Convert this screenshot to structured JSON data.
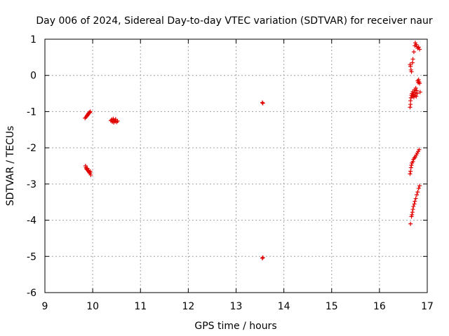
{
  "chart_data": {
    "type": "scatter",
    "title": "Day 006 of 2024, Sidereal Day-to-day VTEC variation (SDTVAR) for receiver naur",
    "xlabel": "GPS time / hours",
    "ylabel": "SDTVAR / TECUs",
    "xlim": [
      9,
      17
    ],
    "ylim": [
      -6,
      1
    ],
    "x_ticks": [
      9,
      10,
      11,
      12,
      13,
      14,
      15,
      16,
      17
    ],
    "y_ticks": [
      1,
      0,
      -1,
      -2,
      -3,
      -4,
      -5,
      -6
    ],
    "grid": true,
    "marker": "+",
    "color": "#e00000",
    "series": [
      {
        "name": "SDTVAR",
        "points": [
          [
            9.84,
            -1.18
          ],
          [
            9.86,
            -1.15
          ],
          [
            9.88,
            -1.12
          ],
          [
            9.89,
            -1.1
          ],
          [
            9.9,
            -1.08
          ],
          [
            9.91,
            -1.06
          ],
          [
            9.92,
            -1.04
          ],
          [
            9.93,
            -1.03
          ],
          [
            9.94,
            -1.02
          ],
          [
            9.95,
            -1.0
          ],
          [
            9.85,
            -2.5
          ],
          [
            9.86,
            -2.55
          ],
          [
            9.87,
            -2.58
          ],
          [
            9.88,
            -2.6
          ],
          [
            9.89,
            -2.57
          ],
          [
            9.9,
            -2.62
          ],
          [
            9.91,
            -2.64
          ],
          [
            9.92,
            -2.66
          ],
          [
            9.93,
            -2.68
          ],
          [
            9.94,
            -2.7
          ],
          [
            9.95,
            -2.65
          ],
          [
            9.96,
            -2.75
          ],
          [
            10.38,
            -1.25
          ],
          [
            10.4,
            -1.22
          ],
          [
            10.41,
            -1.28
          ],
          [
            10.43,
            -1.2
          ],
          [
            10.44,
            -1.3
          ],
          [
            10.45,
            -1.24
          ],
          [
            10.47,
            -1.27
          ],
          [
            10.48,
            -1.21
          ],
          [
            10.5,
            -1.29
          ],
          [
            10.52,
            -1.26
          ],
          [
            13.55,
            -0.75
          ],
          [
            13.56,
            -0.77
          ],
          [
            13.55,
            -5.05
          ],
          [
            13.56,
            -5.03
          ],
          [
            16.64,
            0.3
          ],
          [
            16.65,
            0.25
          ],
          [
            16.66,
            0.15
          ],
          [
            16.67,
            0.1
          ],
          [
            16.69,
            0.35
          ],
          [
            16.7,
            0.45
          ],
          [
            16.72,
            0.65
          ],
          [
            16.74,
            0.82
          ],
          [
            16.75,
            0.9
          ],
          [
            16.77,
            0.85
          ],
          [
            16.78,
            0.8
          ],
          [
            16.8,
            0.75
          ],
          [
            16.82,
            0.78
          ],
          [
            16.84,
            0.72
          ],
          [
            16.64,
            -0.88
          ],
          [
            16.65,
            -0.8
          ],
          [
            16.65,
            -0.7
          ],
          [
            16.66,
            -0.62
          ],
          [
            16.67,
            -0.55
          ],
          [
            16.68,
            -0.5
          ],
          [
            16.69,
            -0.58
          ],
          [
            16.7,
            -0.45
          ],
          [
            16.71,
            -0.52
          ],
          [
            16.72,
            -0.6
          ],
          [
            16.73,
            -0.4
          ],
          [
            16.74,
            -0.55
          ],
          [
            16.75,
            -0.48
          ],
          [
            16.76,
            -0.35
          ],
          [
            16.77,
            -0.58
          ],
          [
            16.78,
            -0.42
          ],
          [
            16.79,
            -0.5
          ],
          [
            16.8,
            -0.15
          ],
          [
            16.81,
            -0.2
          ],
          [
            16.82,
            -0.12
          ],
          [
            16.83,
            -0.18
          ],
          [
            16.84,
            -0.22
          ],
          [
            16.85,
            -0.46
          ],
          [
            16.64,
            -2.72
          ],
          [
            16.65,
            -2.65
          ],
          [
            16.66,
            -2.55
          ],
          [
            16.67,
            -2.48
          ],
          [
            16.68,
            -2.42
          ],
          [
            16.7,
            -2.38
          ],
          [
            16.71,
            -2.32
          ],
          [
            16.73,
            -2.28
          ],
          [
            16.75,
            -2.25
          ],
          [
            16.77,
            -2.2
          ],
          [
            16.79,
            -2.15
          ],
          [
            16.81,
            -2.1
          ],
          [
            16.83,
            -2.05
          ],
          [
            16.65,
            -4.1
          ],
          [
            16.67,
            -3.9
          ],
          [
            16.68,
            -3.85
          ],
          [
            16.69,
            -3.78
          ],
          [
            16.7,
            -3.7
          ],
          [
            16.71,
            -3.62
          ],
          [
            16.73,
            -3.55
          ],
          [
            16.74,
            -3.48
          ],
          [
            16.76,
            -3.4
          ],
          [
            16.78,
            -3.3
          ],
          [
            16.8,
            -3.22
          ],
          [
            16.82,
            -3.12
          ],
          [
            16.84,
            -3.05
          ]
        ]
      }
    ]
  }
}
